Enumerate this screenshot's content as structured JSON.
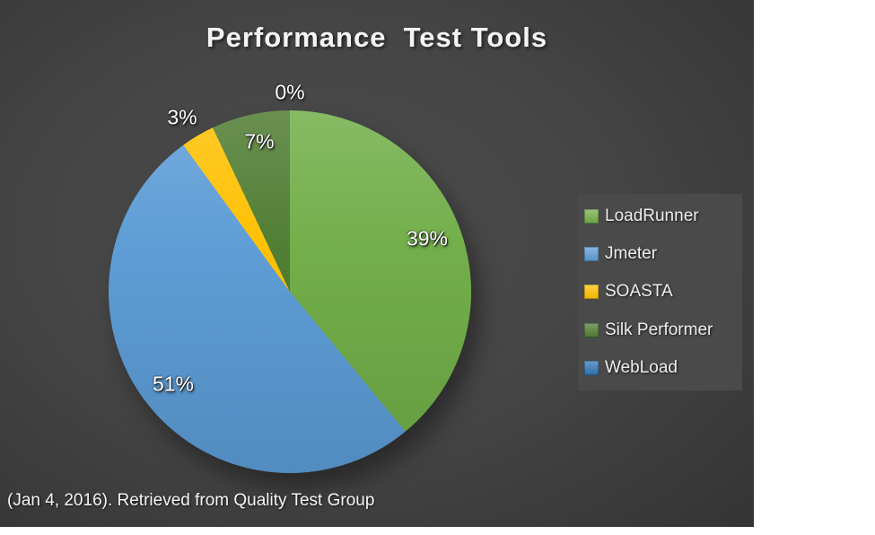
{
  "title": "Performance  Test Tools",
  "caption": "(Jan 4, 2016). Retrieved from Quality Test Group",
  "chart_data": {
    "type": "pie",
    "title": "Performance Test Tools",
    "categories": [
      "LoadRunner",
      "Jmeter",
      "SOASTA",
      "Silk Performer",
      "WebLoad"
    ],
    "values": [
      39,
      51,
      3,
      7,
      0
    ],
    "data_labels": [
      "39%",
      "51%",
      "3%",
      "7%",
      "0%"
    ],
    "colors": [
      "#70AD47",
      "#5B9BD5",
      "#FFC000",
      "#4E7B30",
      "#2E75B6"
    ],
    "start_angle_deg": 0,
    "direction": "clockwise",
    "legend_position": "right",
    "background_color": "#3f3f3f",
    "label_color": "#ffffff"
  }
}
